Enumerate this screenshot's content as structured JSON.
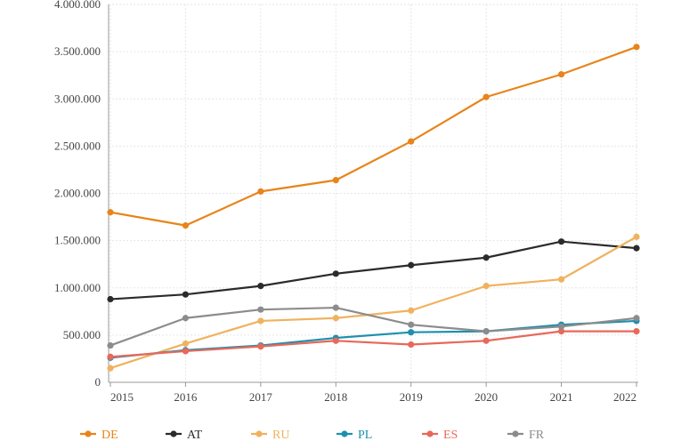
{
  "chart_data": {
    "type": "line",
    "x": [
      "2015",
      "2016",
      "2017",
      "2018",
      "2019",
      "2020",
      "2021",
      "2022"
    ],
    "ylim": [
      0,
      4000000
    ],
    "yticks": [
      0,
      500000,
      1000000,
      1500000,
      2000000,
      2500000,
      3000000,
      3500000,
      4000000
    ],
    "ytick_labels": [
      "0",
      "500.000",
      "1.000.000",
      "1.500.000",
      "2.000.000",
      "2.500.000",
      "3.000.000",
      "3.500.000",
      "4.000.000"
    ],
    "grid": true,
    "legend_position": "bottom",
    "series": [
      {
        "name": "DE",
        "color": "#e8841a",
        "values": [
          1800000,
          1660000,
          2020000,
          2140000,
          2550000,
          3020000,
          3260000,
          3550000
        ]
      },
      {
        "name": "AT",
        "color": "#2b2b2b",
        "values": [
          880000,
          930000,
          1020000,
          1150000,
          1240000,
          1320000,
          1490000,
          1420000
        ]
      },
      {
        "name": "RU",
        "color": "#f0b25e",
        "values": [
          150000,
          410000,
          650000,
          680000,
          760000,
          1020000,
          1090000,
          1540000
        ]
      },
      {
        "name": "PL",
        "color": "#1f8fae",
        "values": [
          260000,
          340000,
          390000,
          470000,
          530000,
          540000,
          610000,
          650000
        ]
      },
      {
        "name": "ES",
        "color": "#e8685a",
        "values": [
          270000,
          330000,
          380000,
          440000,
          400000,
          440000,
          540000,
          540000
        ]
      },
      {
        "name": "FR",
        "color": "#8c8c8c",
        "values": [
          390000,
          680000,
          770000,
          790000,
          610000,
          540000,
          590000,
          680000
        ]
      }
    ]
  }
}
